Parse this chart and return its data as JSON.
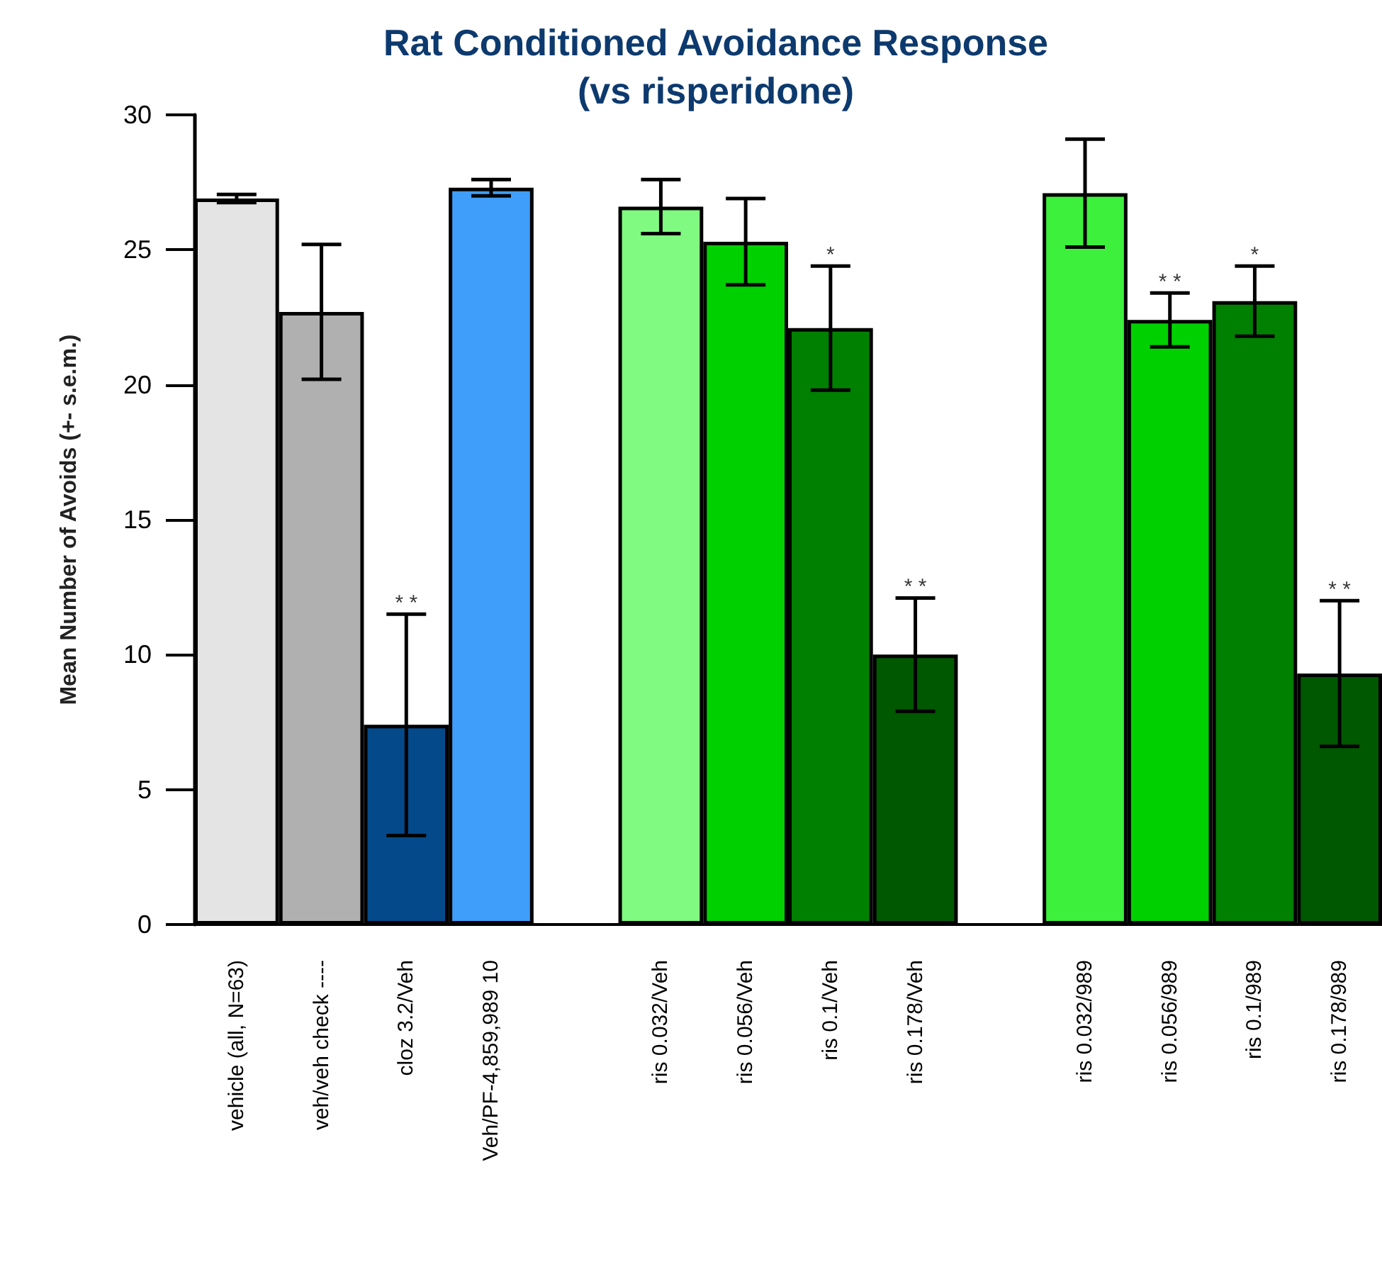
{
  "chart_data": {
    "type": "bar",
    "title": "Rat Conditioned Avoidance Response\n(vs risperidone)",
    "ylabel": "Mean Number of Avoids (+- s.e.m.)",
    "categories": [
      "vehicle (all, N=63)",
      "veh/veh check ----",
      "cloz 3.2/Veh",
      "Veh/PF-4,859,989 10",
      null,
      "ris 0.032/Veh",
      "ris 0.056/Veh",
      "ris 0.1/Veh",
      "ris 0.178/Veh",
      null,
      "ris 0.032/989",
      "ris 0.056/989",
      "ris 0.1/989",
      "ris 0.178/989"
    ],
    "values": [
      26.9,
      22.7,
      7.4,
      27.3,
      null,
      26.6,
      25.3,
      22.1,
      10.0,
      null,
      27.1,
      22.4,
      23.1,
      9.3
    ],
    "errors": [
      0.15,
      2.5,
      4.1,
      0.3,
      null,
      1.0,
      1.6,
      2.3,
      2.1,
      null,
      2.0,
      1.0,
      1.3,
      2.7
    ],
    "colors": [
      "#e4e4e4",
      "#b0b0b0",
      "#044a8a",
      "#3f9ef9",
      "#ffffff",
      "#80fa80",
      "#00d000",
      "#008000",
      "#005800",
      "#ffffff",
      "#3cf03c",
      "#00d000",
      "#008000",
      "#005800"
    ],
    "ylim": [
      0,
      30
    ],
    "yticks": [
      0,
      5,
      10,
      15,
      20,
      25,
      30
    ],
    "grid": false,
    "annotations": [
      {
        "text": "* *",
        "x": "cloz 3.2/Veh",
        "y": 11.5
      },
      {
        "text": "*",
        "x": "ris 0.1/Veh",
        "y": 24.4
      },
      {
        "text": "* *",
        "x": "ris 0.178/Veh",
        "y": 12.1
      },
      {
        "text": "* *",
        "x": "ris 0.056/989",
        "y": 23.4
      },
      {
        "text": "*",
        "x": "ris 0.1/989",
        "y": 24.4
      },
      {
        "text": "* *",
        "x": "ris 0.178/989",
        "y": 12.0
      }
    ]
  }
}
